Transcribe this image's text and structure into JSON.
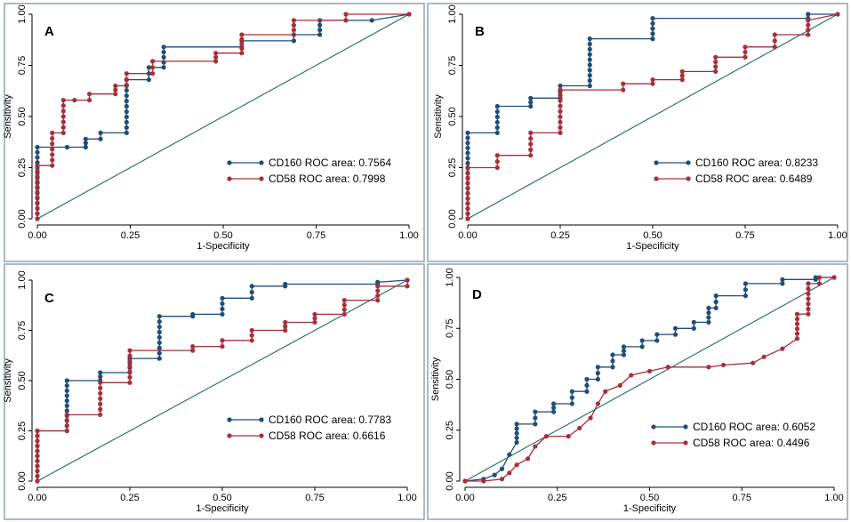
{
  "colors": {
    "cd160": "#1F4E79",
    "cd58": "#A6303A",
    "reference": "#1F6B6B",
    "frame": "#8EA3B5"
  },
  "chart_data": [
    {
      "type": "line",
      "panel_label": "A",
      "xlabel": "1-Specificity",
      "ylabel": "Sensitivity",
      "xlim": [
        0,
        1
      ],
      "ylim": [
        0,
        1
      ],
      "ticks": [
        "0.00",
        "0.25",
        "0.50",
        "0.75",
        "1.00"
      ],
      "tick_values": [
        0,
        0.25,
        0.5,
        0.75,
        1
      ],
      "legend_position": "bottom-right",
      "series": [
        {
          "name": "CD160",
          "legend": "CD160 ROC area: 0.7564",
          "points": [
            [
              0,
              0
            ],
            [
              0,
              0.35
            ],
            [
              0.08,
              0.35
            ],
            [
              0.13,
              0.35
            ],
            [
              0.13,
              0.39
            ],
            [
              0.17,
              0.39
            ],
            [
              0.17,
              0.42
            ],
            [
              0.24,
              0.42
            ],
            [
              0.24,
              0.68
            ],
            [
              0.3,
              0.68
            ],
            [
              0.3,
              0.74
            ],
            [
              0.34,
              0.74
            ],
            [
              0.34,
              0.84
            ],
            [
              0.55,
              0.84
            ],
            [
              0.55,
              0.87
            ],
            [
              0.69,
              0.87
            ],
            [
              0.69,
              0.9
            ],
            [
              0.76,
              0.9
            ],
            [
              0.76,
              0.97
            ],
            [
              0.9,
              0.97
            ],
            [
              1,
              1
            ]
          ]
        },
        {
          "name": "CD58",
          "legend": "CD58 ROC area: 0.7998",
          "points": [
            [
              0,
              0
            ],
            [
              0,
              0.26
            ],
            [
              0.04,
              0.26
            ],
            [
              0.04,
              0.42
            ],
            [
              0.07,
              0.42
            ],
            [
              0.07,
              0.58
            ],
            [
              0.1,
              0.58
            ],
            [
              0.14,
              0.58
            ],
            [
              0.14,
              0.61
            ],
            [
              0.21,
              0.61
            ],
            [
              0.21,
              0.65
            ],
            [
              0.24,
              0.65
            ],
            [
              0.24,
              0.71
            ],
            [
              0.31,
              0.71
            ],
            [
              0.31,
              0.77
            ],
            [
              0.48,
              0.77
            ],
            [
              0.48,
              0.81
            ],
            [
              0.55,
              0.81
            ],
            [
              0.55,
              0.9
            ],
            [
              0.69,
              0.9
            ],
            [
              0.69,
              0.97
            ],
            [
              0.83,
              0.97
            ],
            [
              0.83,
              1
            ],
            [
              1,
              1
            ]
          ]
        }
      ]
    },
    {
      "type": "line",
      "panel_label": "B",
      "xlabel": "1-Specificity",
      "ylabel": "Sensitivity",
      "xlim": [
        0,
        1
      ],
      "ylim": [
        0,
        1
      ],
      "ticks": [
        "0.00",
        "0.25",
        "0.50",
        "0.75",
        "1.00"
      ],
      "tick_values": [
        0,
        0.25,
        0.5,
        0.75,
        1
      ],
      "legend_position": "bottom-right",
      "series": [
        {
          "name": "CD160",
          "legend": "CD160 ROC area: 0.8233",
          "points": [
            [
              0,
              0
            ],
            [
              0,
              0.42
            ],
            [
              0.08,
              0.42
            ],
            [
              0.08,
              0.55
            ],
            [
              0.17,
              0.55
            ],
            [
              0.17,
              0.59
            ],
            [
              0.25,
              0.59
            ],
            [
              0.25,
              0.65
            ],
            [
              0.33,
              0.65
            ],
            [
              0.33,
              0.88
            ],
            [
              0.5,
              0.88
            ],
            [
              0.5,
              0.98
            ],
            [
              0.92,
              0.98
            ],
            [
              0.92,
              1
            ],
            [
              1,
              1
            ]
          ]
        },
        {
          "name": "CD58",
          "legend": "CD58 ROC area: 0.6489",
          "points": [
            [
              0,
              0
            ],
            [
              0,
              0.25
            ],
            [
              0.08,
              0.25
            ],
            [
              0.08,
              0.31
            ],
            [
              0.17,
              0.31
            ],
            [
              0.17,
              0.42
            ],
            [
              0.25,
              0.42
            ],
            [
              0.25,
              0.63
            ],
            [
              0.42,
              0.63
            ],
            [
              0.42,
              0.66
            ],
            [
              0.5,
              0.66
            ],
            [
              0.5,
              0.68
            ],
            [
              0.58,
              0.68
            ],
            [
              0.58,
              0.72
            ],
            [
              0.67,
              0.72
            ],
            [
              0.67,
              0.79
            ],
            [
              0.75,
              0.79
            ],
            [
              0.75,
              0.84
            ],
            [
              0.83,
              0.84
            ],
            [
              0.83,
              0.9
            ],
            [
              0.92,
              0.9
            ],
            [
              0.92,
              0.97
            ],
            [
              1,
              1
            ]
          ]
        }
      ]
    },
    {
      "type": "line",
      "panel_label": "C",
      "xlabel": "1-Specificity",
      "ylabel": "Sensitivity",
      "xlim": [
        0,
        1
      ],
      "ylim": [
        0,
        1
      ],
      "ticks": [
        "0.00",
        "0.25",
        "0.50",
        "0.75",
        "1.00"
      ],
      "tick_values": [
        0,
        0.25,
        0.5,
        0.75,
        1
      ],
      "legend_position": "bottom-right",
      "series": [
        {
          "name": "CD160",
          "legend": "CD160 ROC area: 0.7783",
          "points": [
            [
              0,
              0
            ],
            [
              0,
              0.25
            ],
            [
              0.08,
              0.25
            ],
            [
              0.08,
              0.5
            ],
            [
              0.17,
              0.5
            ],
            [
              0.17,
              0.54
            ],
            [
              0.25,
              0.54
            ],
            [
              0.25,
              0.61
            ],
            [
              0.33,
              0.61
            ],
            [
              0.33,
              0.82
            ],
            [
              0.42,
              0.82
            ],
            [
              0.42,
              0.83
            ],
            [
              0.5,
              0.83
            ],
            [
              0.5,
              0.91
            ],
            [
              0.58,
              0.91
            ],
            [
              0.58,
              0.97
            ],
            [
              0.67,
              0.97
            ],
            [
              0.67,
              0.98
            ],
            [
              0.92,
              0.98
            ],
            [
              0.92,
              0.99
            ],
            [
              1,
              1
            ]
          ]
        },
        {
          "name": "CD58",
          "legend": "CD58 ROC area: 0.6616",
          "points": [
            [
              0,
              0
            ],
            [
              0,
              0.25
            ],
            [
              0.08,
              0.25
            ],
            [
              0.08,
              0.33
            ],
            [
              0.17,
              0.33
            ],
            [
              0.17,
              0.49
            ],
            [
              0.25,
              0.49
            ],
            [
              0.25,
              0.65
            ],
            [
              0.42,
              0.65
            ],
            [
              0.42,
              0.67
            ],
            [
              0.5,
              0.67
            ],
            [
              0.5,
              0.7
            ],
            [
              0.58,
              0.7
            ],
            [
              0.58,
              0.75
            ],
            [
              0.67,
              0.75
            ],
            [
              0.67,
              0.79
            ],
            [
              0.75,
              0.79
            ],
            [
              0.75,
              0.83
            ],
            [
              0.83,
              0.83
            ],
            [
              0.83,
              0.9
            ],
            [
              0.92,
              0.9
            ],
            [
              0.92,
              0.97
            ],
            [
              1,
              0.97
            ],
            [
              1,
              1
            ]
          ]
        }
      ]
    },
    {
      "type": "line",
      "panel_label": "D",
      "xlabel": "1-Specificity",
      "ylabel": "Sensitivity",
      "xlim": [
        0,
        1
      ],
      "ylim": [
        0,
        1
      ],
      "ticks": [
        "0.00",
        "0.25",
        "0.50",
        "0.75",
        "1.00"
      ],
      "tick_values": [
        0,
        0.25,
        0.5,
        0.75,
        1
      ],
      "legend_position": "bottom-right",
      "series": [
        {
          "name": "CD160",
          "legend": "CD160 ROC area: 0.6052",
          "points": [
            [
              0,
              0
            ],
            [
              0.05,
              0.01
            ],
            [
              0.08,
              0.03
            ],
            [
              0.1,
              0.06
            ],
            [
              0.12,
              0.13
            ],
            [
              0.14,
              0.19
            ],
            [
              0.14,
              0.28
            ],
            [
              0.19,
              0.28
            ],
            [
              0.19,
              0.34
            ],
            [
              0.24,
              0.34
            ],
            [
              0.24,
              0.38
            ],
            [
              0.29,
              0.38
            ],
            [
              0.29,
              0.44
            ],
            [
              0.33,
              0.44
            ],
            [
              0.33,
              0.5
            ],
            [
              0.36,
              0.5
            ],
            [
              0.36,
              0.56
            ],
            [
              0.4,
              0.56
            ],
            [
              0.4,
              0.62
            ],
            [
              0.43,
              0.62
            ],
            [
              0.43,
              0.66
            ],
            [
              0.48,
              0.66
            ],
            [
              0.48,
              0.69
            ],
            [
              0.52,
              0.69
            ],
            [
              0.52,
              0.72
            ],
            [
              0.57,
              0.72
            ],
            [
              0.57,
              0.75
            ],
            [
              0.62,
              0.75
            ],
            [
              0.62,
              0.78
            ],
            [
              0.66,
              0.78
            ],
            [
              0.66,
              0.85
            ],
            [
              0.68,
              0.85
            ],
            [
              0.68,
              0.91
            ],
            [
              0.76,
              0.91
            ],
            [
              0.76,
              0.97
            ],
            [
              0.86,
              0.97
            ],
            [
              0.86,
              0.99
            ],
            [
              0.95,
              0.99
            ],
            [
              0.95,
              1
            ],
            [
              1,
              1
            ]
          ]
        },
        {
          "name": "CD58",
          "legend": "CD58 ROC area: 0.4496",
          "points": [
            [
              0,
              0
            ],
            [
              0.05,
              0
            ],
            [
              0.1,
              0.01
            ],
            [
              0.12,
              0.04
            ],
            [
              0.14,
              0.08
            ],
            [
              0.17,
              0.11
            ],
            [
              0.19,
              0.17
            ],
            [
              0.22,
              0.22
            ],
            [
              0.28,
              0.22
            ],
            [
              0.31,
              0.26
            ],
            [
              0.34,
              0.31
            ],
            [
              0.36,
              0.38
            ],
            [
              0.38,
              0.44
            ],
            [
              0.42,
              0.47
            ],
            [
              0.45,
              0.52
            ],
            [
              0.5,
              0.54
            ],
            [
              0.55,
              0.56
            ],
            [
              0.66,
              0.56
            ],
            [
              0.7,
              0.57
            ],
            [
              0.78,
              0.58
            ],
            [
              0.81,
              0.61
            ],
            [
              0.86,
              0.65
            ],
            [
              0.9,
              0.7
            ],
            [
              0.9,
              0.82
            ],
            [
              0.93,
              0.82
            ],
            [
              0.93,
              0.97
            ],
            [
              0.96,
              0.97
            ],
            [
              0.96,
              1
            ],
            [
              1,
              1
            ]
          ]
        }
      ]
    }
  ]
}
